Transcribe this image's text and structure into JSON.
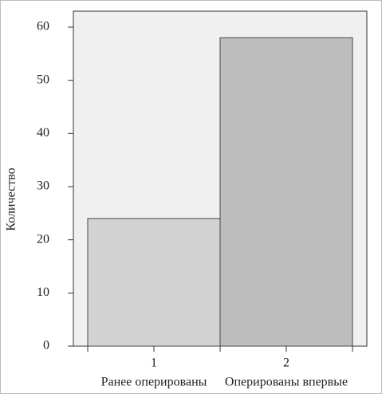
{
  "chart_data": {
    "type": "bar",
    "y_label": "Количество",
    "categories": [
      "1",
      "2"
    ],
    "category_labels": [
      "Ранее оперированы",
      "Оперированы впервые"
    ],
    "values": [
      24,
      58
    ],
    "colors": [
      "#d3d3d3",
      "#bebebe"
    ],
    "ylim": [
      0,
      63
    ],
    "yticks": [
      0,
      10,
      20,
      30,
      40,
      50,
      60
    ]
  }
}
